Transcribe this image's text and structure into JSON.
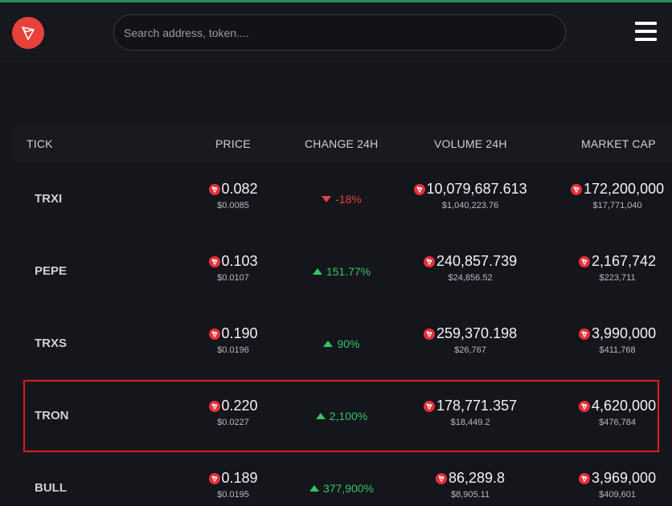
{
  "search": {
    "placeholder": "Search address, token...."
  },
  "colors": {
    "accent": "#2a8a5e",
    "coin": "#e8303a",
    "up": "#31c564",
    "down": "#e0443f",
    "highlight": "#e01b1b"
  },
  "table": {
    "headers": {
      "tick": "TICK",
      "price": "PRICE",
      "change": "CHANGE 24H",
      "volume": "VOLUME 24H",
      "market_cap": "MARKET CAP"
    },
    "rows": [
      {
        "tick": "TRXI",
        "price": "0.082",
        "price_usd": "$0.0085",
        "change": "-18%",
        "direction": "down",
        "volume": "10,079,687.613",
        "volume_usd": "$1,040,223.76",
        "market_cap": "172,200,000",
        "market_cap_usd": "$17,771,040"
      },
      {
        "tick": "PEPE",
        "price": "0.103",
        "price_usd": "$0.0107",
        "change": "151.77%",
        "direction": "up",
        "volume": "240,857.739",
        "volume_usd": "$24,856.52",
        "market_cap": "2,167,742",
        "market_cap_usd": "$223,711"
      },
      {
        "tick": "TRXS",
        "price": "0.190",
        "price_usd": "$0.0196",
        "change": "90%",
        "direction": "up",
        "volume": "259,370.198",
        "volume_usd": "$26,767",
        "market_cap": "3,990,000",
        "market_cap_usd": "$411,768"
      },
      {
        "tick": "TRON",
        "price": "0.220",
        "price_usd": "$0.0227",
        "change": "2,100%",
        "direction": "up",
        "volume": "178,771.357",
        "volume_usd": "$18,449.2",
        "market_cap": "4,620,000",
        "market_cap_usd": "$476,784",
        "highlighted": true
      },
      {
        "tick": "BULL",
        "price": "0.189",
        "price_usd": "$0.0195",
        "change": "377,900%",
        "direction": "up",
        "volume": "86,289.8",
        "volume_usd": "$8,905.11",
        "market_cap": "3,969,000",
        "market_cap_usd": "$409,601"
      }
    ]
  }
}
